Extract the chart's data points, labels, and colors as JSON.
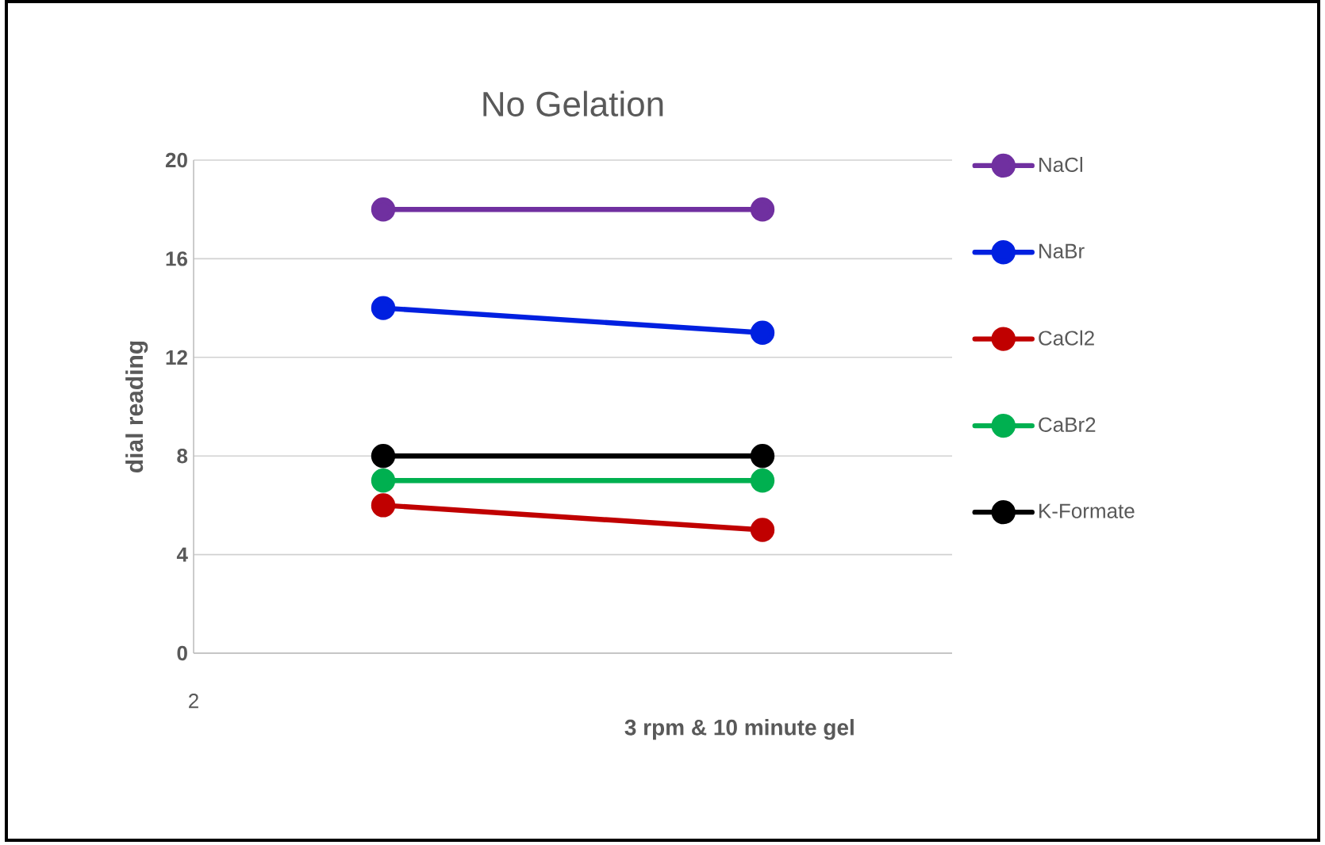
{
  "chart_data": {
    "type": "line",
    "title": "No Gelation",
    "ylabel": "dial reading",
    "xlabel": "3 rpm & 10 minute gel",
    "categories": [
      null,
      null
    ],
    "series": [
      {
        "name": "NaCl",
        "color": "#7030a0",
        "values": [
          18,
          18
        ]
      },
      {
        "name": "NaBr",
        "color": "#0020e0",
        "values": [
          14,
          13
        ]
      },
      {
        "name": "CaCl2",
        "color": "#c00000",
        "values": [
          6,
          5
        ]
      },
      {
        "name": "CaBr2",
        "color": "#00b050",
        "values": [
          7,
          7
        ]
      },
      {
        "name": "K-Formate",
        "color": "#000000",
        "values": [
          8,
          8
        ]
      }
    ],
    "ylim": [
      0,
      20
    ],
    "yticks": [
      0,
      4,
      8,
      12,
      16,
      20
    ],
    "grid": "y",
    "legend": "right",
    "marker": "circle",
    "line_style": "solid",
    "annotations": [
      "2"
    ]
  }
}
